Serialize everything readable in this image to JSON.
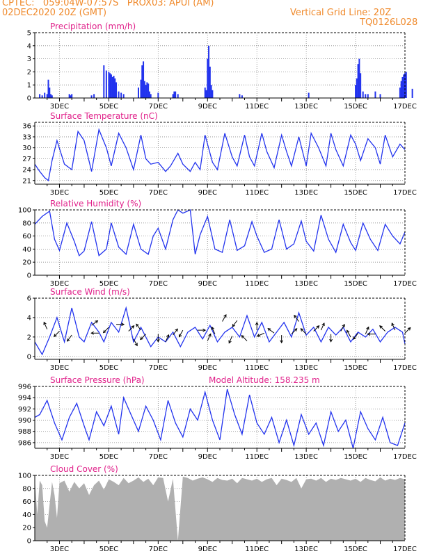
{
  "header": {
    "left_line1": "CPTEC:   059:04W-07:57S   PROX03: APUI (AM)",
    "left_line2": "02DEC2020 20Z (GMT)",
    "right_line1": "Vertical Grid Line: 20Z",
    "right_line2": "TQ0126L028",
    "orange": "#f08a2c",
    "magenta": "#e0218a"
  },
  "colors": {
    "line": "#2233ee",
    "bar": "#2233ee",
    "cloud": "#b0b0b0",
    "grid": "#888888"
  },
  "x_ticks": [
    "3DEC",
    "5DEC",
    "7DEC",
    "9DEC",
    "11DEC",
    "13DEC",
    "15DEC",
    "17DEC"
  ],
  "chart_data": [
    {
      "type": "bar",
      "title": "Precipitation (mm/h)",
      "x_range": [
        0,
        15
      ],
      "ylim": [
        0,
        5
      ],
      "y_ticks": [
        0,
        1,
        2,
        3,
        4,
        5
      ],
      "x": [
        0.2,
        0.3,
        0.4,
        0.5,
        0.55,
        0.6,
        0.65,
        0.7,
        1.4,
        1.45,
        1.5,
        2.3,
        2.4,
        2.8,
        2.9,
        3.0,
        3.05,
        3.1,
        3.15,
        3.2,
        3.25,
        3.3,
        3.4,
        3.5,
        3.6,
        4.2,
        4.3,
        4.35,
        4.4,
        4.45,
        4.5,
        4.55,
        4.6,
        4.65,
        4.7,
        5.0,
        5.6,
        5.65,
        5.7,
        5.8,
        6.9,
        6.95,
        7.0,
        7.05,
        7.1,
        7.15,
        7.2,
        8.3,
        8.4,
        11.1,
        13.0,
        13.05,
        13.1,
        13.15,
        13.2,
        13.3,
        13.4,
        13.5,
        13.8,
        14.0,
        14.8,
        14.85,
        14.9,
        14.95,
        15.0,
        15.05,
        15.3
      ],
      "values": [
        0.3,
        0.2,
        0.4,
        0.3,
        1.4,
        0.8,
        0.3,
        0.2,
        0.3,
        0.2,
        0.3,
        0.2,
        0.3,
        2.5,
        2.1,
        2.0,
        1.9,
        1.8,
        1.6,
        1.7,
        1.5,
        1.2,
        0.5,
        0.4,
        0.3,
        0.8,
        1.4,
        2.5,
        2.8,
        1.3,
        1.0,
        1.2,
        1.1,
        0.5,
        0.3,
        0.4,
        0.3,
        0.5,
        0.5,
        0.3,
        0.8,
        0.6,
        3.0,
        4.0,
        2.4,
        1.0,
        0.6,
        0.3,
        0.2,
        0.4,
        1.0,
        1.5,
        2.6,
        3.0,
        1.9,
        0.5,
        0.3,
        0.3,
        0.5,
        0.3,
        0.8,
        1.3,
        1.6,
        1.8,
        1.9,
        2.0,
        0.7
      ]
    },
    {
      "type": "line",
      "title": "Surface Temperature (nC)",
      "x_range": [
        0,
        15
      ],
      "ylim": [
        20,
        37
      ],
      "y_ticks": [
        21,
        24,
        27,
        30,
        33,
        36
      ],
      "x": [
        0,
        0.2,
        0.4,
        0.55,
        0.7,
        0.9,
        1.2,
        1.5,
        1.75,
        2.0,
        2.3,
        2.6,
        2.9,
        3.1,
        3.4,
        3.7,
        4.0,
        4.3,
        4.5,
        4.7,
        5.0,
        5.3,
        5.5,
        5.8,
        6.0,
        6.3,
        6.5,
        6.7,
        6.9,
        7.2,
        7.4,
        7.7,
        8.0,
        8.2,
        8.5,
        8.7,
        8.9,
        9.2,
        9.4,
        9.7,
        10.0,
        10.2,
        10.4,
        10.7,
        11.0,
        11.2,
        11.5,
        11.8,
        12.0,
        12.2,
        12.5,
        12.8,
        13.0,
        13.2,
        13.5,
        13.8,
        14.0,
        14.2,
        14.5,
        14.8,
        15.0
      ],
      "values": [
        25.5,
        23.5,
        21.8,
        21.0,
        26.5,
        32.0,
        25.5,
        24.0,
        34.5,
        32.0,
        23.5,
        35.0,
        30.0,
        25.0,
        34.0,
        30.0,
        24.0,
        33.5,
        27.0,
        25.5,
        26.0,
        23.5,
        25.0,
        28.5,
        25.5,
        23.5,
        26.0,
        24.0,
        33.5,
        26.0,
        24.0,
        34.0,
        27.5,
        25.0,
        33.5,
        27.5,
        25.0,
        34.0,
        29.0,
        24.5,
        33.5,
        29.0,
        25.0,
        33.0,
        25.0,
        34.0,
        30.0,
        25.0,
        34.0,
        29.5,
        25.0,
        33.5,
        31.0,
        26.5,
        32.5,
        30.0,
        25.5,
        33.5,
        27.5,
        31.0,
        29.5
      ]
    },
    {
      "type": "line",
      "title": "Relative Humidity (%)",
      "x_range": [
        0,
        15
      ],
      "ylim": [
        0,
        100
      ],
      "y_ticks": [
        0,
        20,
        40,
        60,
        80,
        100
      ],
      "x": [
        0,
        0.3,
        0.6,
        0.8,
        1.0,
        1.3,
        1.6,
        1.8,
        2.0,
        2.3,
        2.6,
        2.9,
        3.1,
        3.4,
        3.7,
        4.0,
        4.3,
        4.6,
        4.8,
        5.0,
        5.3,
        5.6,
        5.8,
        6.0,
        6.3,
        6.5,
        6.7,
        7.0,
        7.3,
        7.6,
        7.9,
        8.2,
        8.5,
        8.8,
        9.0,
        9.3,
        9.6,
        9.9,
        10.2,
        10.5,
        10.8,
        11.0,
        11.3,
        11.6,
        11.9,
        12.2,
        12.5,
        12.8,
        13.0,
        13.3,
        13.6,
        13.9,
        14.2,
        14.5,
        14.8,
        15.0
      ],
      "values": [
        78,
        90,
        98,
        55,
        38,
        80,
        52,
        30,
        37,
        82,
        30,
        40,
        80,
        43,
        32,
        78,
        40,
        32,
        60,
        72,
        40,
        85,
        100,
        95,
        100,
        32,
        62,
        90,
        40,
        35,
        85,
        38,
        45,
        82,
        60,
        35,
        40,
        85,
        40,
        48,
        83,
        52,
        37,
        92,
        55,
        35,
        78,
        50,
        38,
        80,
        55,
        38,
        78,
        60,
        48,
        66
      ]
    },
    {
      "type": "line",
      "title": "Surface Wind (m/s)",
      "x_range": [
        0,
        15
      ],
      "ylim": [
        -0.3,
        6
      ],
      "y_ticks": [
        0,
        2,
        4,
        6
      ],
      "x": [
        0,
        0.3,
        0.6,
        0.9,
        1.2,
        1.5,
        1.8,
        2.0,
        2.3,
        2.6,
        2.8,
        3.1,
        3.4,
        3.7,
        4.0,
        4.3,
        4.5,
        4.7,
        5.0,
        5.3,
        5.6,
        5.9,
        6.2,
        6.5,
        6.8,
        7.1,
        7.4,
        7.7,
        8.0,
        8.3,
        8.6,
        8.9,
        9.2,
        9.5,
        9.8,
        10.1,
        10.4,
        10.7,
        11.0,
        11.3,
        11.6,
        11.9,
        12.2,
        12.5,
        12.8,
        13.1,
        13.4,
        13.7,
        14.0,
        14.3,
        14.6,
        14.9,
        15.0
      ],
      "values": [
        1.5,
        0.2,
        2.0,
        4.0,
        1.5,
        5.0,
        2.0,
        1.5,
        3.5,
        2.5,
        1.5,
        3.5,
        2.5,
        5.0,
        1.5,
        3.0,
        2.0,
        1.0,
        2.0,
        1.5,
        2.5,
        1.0,
        2.5,
        3.0,
        1.8,
        3.2,
        1.5,
        2.5,
        3.0,
        2.0,
        4.2,
        2.0,
        3.5,
        1.5,
        2.5,
        3.5,
        2.0,
        4.5,
        2.2,
        3.0,
        1.5,
        3.0,
        2.2,
        3.0,
        1.5,
        2.5,
        2.0,
        2.8,
        1.5,
        2.5,
        3.0,
        2.5,
        1.3
      ],
      "arrows_x": [
        0.5,
        1.0,
        1.5,
        2.3,
        2.6,
        3.0,
        3.3,
        3.8,
        4.0,
        4.3,
        4.5,
        5.0,
        5.3,
        5.6,
        6.0,
        6.6,
        7.0,
        7.3,
        7.6,
        8.0,
        8.2,
        8.6,
        9.0,
        9.3,
        9.7,
        10.0,
        10.4,
        10.7,
        11.0,
        11.3,
        11.6,
        12.0,
        12.4,
        12.8,
        13.1,
        13.4,
        13.8,
        14.2,
        14.6,
        15.0
      ],
      "arrows_speed": [
        2.8,
        2.6,
        2.2,
        3.2,
        2.4,
        3.0,
        3.3,
        2.6,
        1.8,
        2.7,
        2.3,
        2.3,
        1.5,
        2.2,
        2.7,
        2.7,
        1.6,
        2.3,
        3.6,
        2.1,
        3.7,
        1.6,
        2.7,
        2.4,
        2.4,
        2.2,
        2.3,
        3.6,
        2.3,
        2.6,
        2.7,
        2.3,
        2.6,
        2.0,
        2.4,
        2.3,
        2.3,
        2.6,
        2.7,
        2.4
      ],
      "arrows_dx": [
        -0.4,
        -1.0,
        -0.6,
        0.8,
        -1.0,
        -1.0,
        1.0,
        0.7,
        0.5,
        -0.6,
        -0.7,
        0.0,
        0.4,
        0.6,
        -0.5,
        1.0,
        0.4,
        -0.4,
        0.5,
        -0.4,
        -0.6,
        -0.7,
        0.0,
        -0.9,
        -0.8,
        0.0,
        0.7,
        -0.6,
        -0.7,
        0.7,
        0.4,
        0.0,
        0.5,
        -0.5,
        -0.6,
        0.4,
        -1.0,
        -0.7,
        -0.4,
        0.7
      ],
      "arrows_dy": [
        0.9,
        -1.0,
        -0.8,
        0.6,
        0.0,
        -1.0,
        0.0,
        0.7,
        -0.9,
        0.8,
        -0.7,
        -1.0,
        0.9,
        0.8,
        -0.9,
        0.0,
        0.9,
        0.9,
        0.9,
        -0.9,
        -0.8,
        0.7,
        1.0,
        -0.4,
        0.6,
        -1.0,
        0.7,
        0.8,
        0.7,
        0.7,
        0.9,
        -1.0,
        0.9,
        0.9,
        -0.8,
        0.9,
        0.0,
        0.7,
        0.9,
        0.7
      ]
    },
    {
      "type": "line",
      "title": "Surface Pressure (hPa)",
      "annotation": "Model Altitude: 158.235 m",
      "x_range": [
        0,
        15
      ],
      "ylim": [
        985,
        996
      ],
      "y_ticks": [
        986,
        988,
        990,
        992,
        994,
        996
      ],
      "x": [
        0,
        0.2,
        0.5,
        0.8,
        1.1,
        1.4,
        1.7,
        2.0,
        2.2,
        2.5,
        2.8,
        3.1,
        3.4,
        3.6,
        3.9,
        4.2,
        4.5,
        4.8,
        5.1,
        5.4,
        5.7,
        6.0,
        6.3,
        6.6,
        6.9,
        7.2,
        7.5,
        7.8,
        8.1,
        8.4,
        8.7,
        9.0,
        9.3,
        9.6,
        9.9,
        10.2,
        10.5,
        10.8,
        11.1,
        11.4,
        11.7,
        12.0,
        12.3,
        12.6,
        12.9,
        13.2,
        13.5,
        13.8,
        14.1,
        14.4,
        14.7,
        15.0
      ],
      "values": [
        990.5,
        991.0,
        993.5,
        989.5,
        986.5,
        990.5,
        993.0,
        989.0,
        986.5,
        991.5,
        989.0,
        992.5,
        987.5,
        994.0,
        991.0,
        988.0,
        992.5,
        990.0,
        986.5,
        993.5,
        989.5,
        987.0,
        992.0,
        990.0,
        995.0,
        990.0,
        986.5,
        995.5,
        991.0,
        987.5,
        994.5,
        989.5,
        987.5,
        990.5,
        986.0,
        990.0,
        985.5,
        991.0,
        987.5,
        989.5,
        985.5,
        991.5,
        988.0,
        990.0,
        985.0,
        991.5,
        988.5,
        986.5,
        990.5,
        986.0,
        985.5,
        989.5
      ]
    },
    {
      "type": "area",
      "title": "Cloud Cover (%)",
      "x_range": [
        0,
        15
      ],
      "ylim": [
        0,
        100
      ],
      "y_ticks": [
        0,
        20,
        40,
        60,
        80,
        100
      ],
      "x": [
        0,
        0.1,
        0.2,
        0.3,
        0.4,
        0.5,
        0.6,
        0.7,
        0.8,
        0.9,
        1.0,
        1.2,
        1.4,
        1.6,
        1.8,
        2.0,
        2.2,
        2.4,
        2.6,
        2.8,
        3.0,
        3.2,
        3.4,
        3.6,
        3.8,
        4.0,
        4.2,
        4.4,
        4.6,
        4.8,
        5.0,
        5.2,
        5.4,
        5.6,
        5.8,
        6.0,
        6.2,
        6.4,
        6.6,
        6.8,
        7.0,
        7.2,
        7.4,
        7.6,
        7.8,
        8.0,
        8.2,
        8.4,
        8.6,
        8.8,
        9.0,
        9.2,
        9.4,
        9.6,
        9.8,
        10.0,
        10.2,
        10.4,
        10.6,
        10.8,
        11.0,
        11.2,
        11.4,
        11.6,
        11.8,
        12.0,
        12.2,
        12.4,
        12.6,
        12.8,
        13.0,
        13.2,
        13.4,
        13.6,
        13.8,
        14.0,
        14.2,
        14.4,
        14.6,
        14.8,
        15.0
      ],
      "values": [
        95,
        40,
        92,
        85,
        30,
        20,
        55,
        90,
        70,
        35,
        88,
        92,
        75,
        90,
        80,
        88,
        70,
        85,
        92,
        78,
        94,
        90,
        85,
        96,
        88,
        92,
        97,
        90,
        95,
        85,
        97,
        96,
        60,
        95,
        0,
        98,
        96,
        92,
        95,
        97,
        94,
        90,
        96,
        93,
        92,
        95,
        88,
        96,
        94,
        92,
        95,
        90,
        94,
        96,
        85,
        95,
        93,
        90,
        96,
        80,
        94,
        95,
        92,
        96,
        90,
        95,
        93,
        96,
        94,
        92,
        95,
        90,
        96,
        93,
        91,
        97,
        92,
        95,
        93,
        96,
        94
      ]
    }
  ]
}
